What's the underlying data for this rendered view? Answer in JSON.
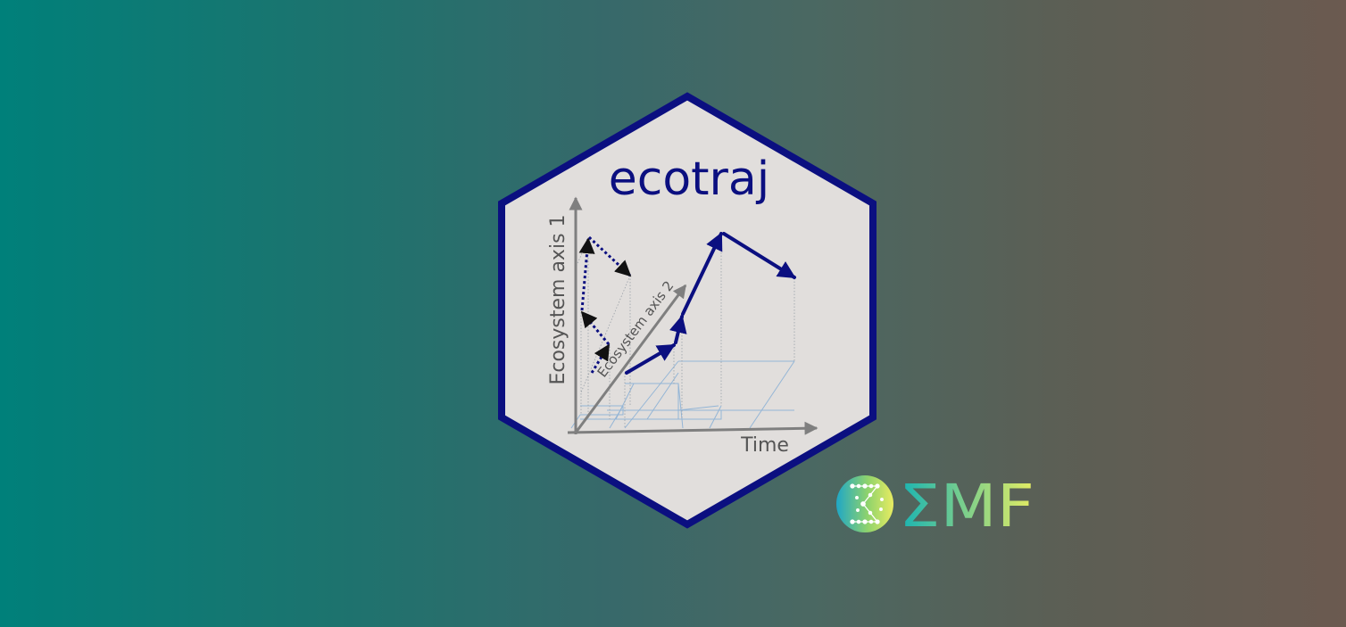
{
  "hex_sticker": {
    "title": "ecotraj",
    "axes": {
      "y_label": "Ecosystem axis 1",
      "z_label": "Ecosystem axis 2",
      "x_label": "Time"
    },
    "colors": {
      "border": "#0b0f80",
      "fill": "#e1dedc",
      "title": "#0b0f80",
      "trajectory": "#0b0f80",
      "axis": "#7f7f7f",
      "projection_grid": "#93b5d6"
    }
  },
  "partner_logo": {
    "text": "ΣMF",
    "icon_name": "sigma-network-circle-icon",
    "colors": {
      "gradient_start": "#17b3b3",
      "gradient_end": "#e6ec62"
    }
  },
  "background": {
    "gradient_start": "#00807a",
    "gradient_end": "#6b5a50"
  }
}
